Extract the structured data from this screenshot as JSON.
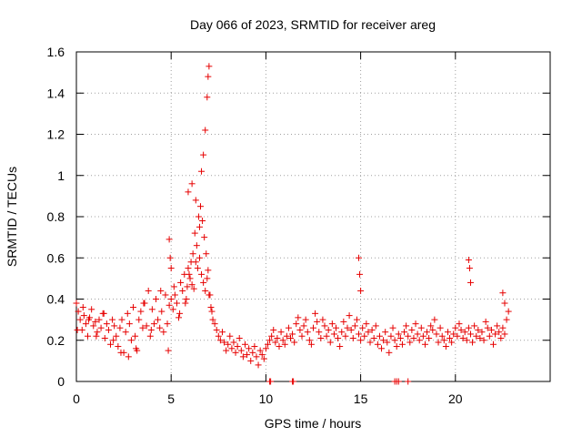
{
  "chart_data": {
    "type": "scatter",
    "title": "Day 066 of 2023, SRMTID for receiver areg",
    "xlabel": "GPS time / hours",
    "ylabel": "SRMTID / TECUs",
    "xlim": [
      0,
      25
    ],
    "ylim": [
      0,
      1.6
    ],
    "xticks": [
      0,
      5,
      10,
      15,
      20
    ],
    "yticks": [
      0,
      0.2,
      0.4,
      0.6,
      0.8,
      1,
      1.2,
      1.4,
      1.6
    ],
    "xtick_labels": [
      "0",
      "5",
      "10",
      "15",
      "20"
    ],
    "ytick_labels": [
      "0",
      "0.2",
      "0.4",
      "0.6",
      "0.8",
      "1",
      "1.2",
      "1.4",
      "1.6"
    ],
    "grid": true,
    "marker": "+",
    "color": "#e60000",
    "series": [
      {
        "name": "SRMTID",
        "x": [
          0.0,
          0.1,
          0.2,
          0.3,
          0.4,
          0.5,
          0.6,
          0.7,
          0.8,
          0.9,
          1.0,
          1.1,
          1.2,
          1.3,
          1.4,
          1.5,
          1.6,
          1.7,
          1.8,
          1.9,
          2.0,
          2.1,
          2.2,
          2.3,
          2.4,
          2.5,
          2.6,
          2.7,
          2.8,
          2.9,
          3.0,
          3.1,
          3.2,
          3.3,
          3.4,
          3.5,
          3.6,
          3.7,
          3.8,
          3.9,
          4.0,
          4.1,
          4.2,
          4.3,
          4.4,
          4.5,
          4.6,
          4.7,
          4.8,
          4.9,
          5.0,
          5.1,
          5.2,
          5.3,
          5.4,
          5.5,
          5.6,
          5.7,
          5.8,
          5.9,
          6.0,
          6.1,
          6.2,
          6.3,
          6.4,
          6.5,
          6.6,
          6.7,
          6.8,
          6.9,
          7.0,
          7.1,
          7.2,
          7.3,
          7.4,
          7.5,
          7.6,
          7.7,
          7.8,
          7.9,
          8.0,
          8.1,
          8.2,
          8.3,
          8.4,
          8.5,
          8.6,
          8.7,
          8.8,
          8.9,
          9.0,
          9.1,
          9.2,
          9.3,
          9.4,
          9.5,
          9.6,
          9.7,
          9.8,
          9.9,
          10.0,
          10.1,
          10.2,
          10.3,
          10.4,
          10.5,
          10.6,
          10.7,
          10.8,
          10.9,
          11.0,
          11.1,
          11.2,
          11.3,
          11.4,
          11.5,
          11.6,
          11.7,
          11.8,
          11.9,
          12.0,
          12.1,
          12.2,
          12.3,
          12.4,
          12.5,
          12.6,
          12.7,
          12.8,
          12.9,
          13.0,
          13.1,
          13.2,
          13.3,
          13.4,
          13.5,
          13.6,
          13.7,
          13.8,
          13.9,
          14.0,
          14.1,
          14.2,
          14.3,
          14.4,
          14.5,
          14.6,
          14.7,
          14.8,
          14.9,
          15.0,
          15.1,
          15.2,
          15.3,
          15.4,
          15.5,
          15.6,
          15.7,
          15.8,
          15.9,
          16.0,
          16.1,
          16.2,
          16.3,
          16.4,
          16.5,
          16.6,
          16.7,
          16.8,
          16.9,
          17.0,
          17.1,
          17.2,
          17.3,
          17.4,
          17.5,
          17.6,
          17.7,
          17.8,
          17.9,
          18.0,
          18.1,
          18.2,
          18.3,
          18.4,
          18.5,
          18.6,
          18.7,
          18.8,
          18.9,
          19.0,
          19.1,
          19.2,
          19.3,
          19.4,
          19.5,
          19.6,
          19.7,
          19.8,
          19.9,
          20.0,
          20.1,
          20.2,
          20.3,
          20.4,
          20.5,
          20.6,
          20.7,
          20.8,
          20.9,
          21.0,
          21.1,
          21.2,
          21.3,
          21.4,
          21.5,
          21.6,
          21.7,
          21.8,
          21.9,
          22.0,
          22.1,
          22.2,
          22.3,
          22.4,
          22.5,
          22.6,
          22.7,
          22.8,
          0.05,
          0.35,
          0.65,
          1.05,
          1.45,
          1.95,
          2.35,
          2.75,
          3.15,
          3.55,
          3.95,
          4.45,
          4.85,
          5.15,
          5.45,
          5.75,
          5.85,
          5.95,
          6.05,
          6.15,
          6.25,
          6.35,
          6.45,
          6.55,
          6.65,
          6.75,
          6.85,
          6.95,
          7.05,
          7.15,
          5.9,
          6.1,
          6.3,
          6.5,
          6.6,
          6.7,
          6.8,
          6.9,
          6.95,
          7.0,
          4.9,
          4.95,
          5.0,
          14.9,
          14.95,
          15.0,
          20.7,
          20.75,
          20.8,
          22.5,
          22.6,
          10.2,
          10.25,
          11.4,
          11.45,
          16.8,
          16.9,
          17.0,
          17.5
        ],
        "y": [
          0.38,
          0.34,
          0.3,
          0.25,
          0.32,
          0.28,
          0.22,
          0.31,
          0.35,
          0.27,
          0.29,
          0.24,
          0.3,
          0.26,
          0.33,
          0.21,
          0.28,
          0.25,
          0.18,
          0.3,
          0.27,
          0.22,
          0.17,
          0.26,
          0.3,
          0.14,
          0.24,
          0.33,
          0.28,
          0.2,
          0.36,
          0.22,
          0.15,
          0.3,
          0.34,
          0.26,
          0.38,
          0.27,
          0.44,
          0.22,
          0.35,
          0.28,
          0.4,
          0.3,
          0.26,
          0.34,
          0.24,
          0.42,
          0.28,
          0.37,
          0.4,
          0.35,
          0.42,
          0.38,
          0.31,
          0.48,
          0.44,
          0.52,
          0.4,
          0.55,
          0.5,
          0.47,
          0.45,
          0.58,
          0.55,
          0.6,
          0.52,
          0.48,
          0.44,
          0.5,
          0.42,
          0.36,
          0.3,
          0.28,
          0.25,
          0.22,
          0.2,
          0.24,
          0.19,
          0.15,
          0.18,
          0.22,
          0.16,
          0.19,
          0.14,
          0.17,
          0.21,
          0.15,
          0.12,
          0.18,
          0.13,
          0.16,
          0.1,
          0.14,
          0.17,
          0.12,
          0.08,
          0.15,
          0.13,
          0.11,
          0.16,
          0.18,
          0.2,
          0.22,
          0.25,
          0.19,
          0.21,
          0.17,
          0.24,
          0.2,
          0.18,
          0.22,
          0.26,
          0.21,
          0.23,
          0.19,
          0.28,
          0.31,
          0.25,
          0.22,
          0.27,
          0.3,
          0.24,
          0.2,
          0.18,
          0.26,
          0.33,
          0.29,
          0.24,
          0.21,
          0.3,
          0.27,
          0.22,
          0.25,
          0.19,
          0.28,
          0.23,
          0.26,
          0.21,
          0.17,
          0.24,
          0.29,
          0.22,
          0.26,
          0.32,
          0.25,
          0.21,
          0.27,
          0.3,
          0.23,
          0.2,
          0.26,
          0.22,
          0.28,
          0.24,
          0.19,
          0.25,
          0.21,
          0.27,
          0.18,
          0.22,
          0.16,
          0.2,
          0.24,
          0.19,
          0.14,
          0.22,
          0.26,
          0.2,
          0.17,
          0.23,
          0.21,
          0.18,
          0.24,
          0.27,
          0.22,
          0.19,
          0.25,
          0.21,
          0.28,
          0.23,
          0.2,
          0.26,
          0.22,
          0.18,
          0.24,
          0.21,
          0.27,
          0.25,
          0.3,
          0.23,
          0.19,
          0.26,
          0.22,
          0.2,
          0.17,
          0.24,
          0.21,
          0.19,
          0.23,
          0.26,
          0.22,
          0.28,
          0.25,
          0.21,
          0.24,
          0.2,
          0.26,
          0.23,
          0.19,
          0.27,
          0.22,
          0.25,
          0.21,
          0.24,
          0.2,
          0.29,
          0.26,
          0.22,
          0.25,
          0.18,
          0.23,
          0.27,
          0.24,
          0.21,
          0.26,
          0.23,
          0.3,
          0.34,
          0.25,
          0.36,
          0.3,
          0.22,
          0.33,
          0.2,
          0.14,
          0.12,
          0.16,
          0.38,
          0.25,
          0.44,
          0.15,
          0.46,
          0.33,
          0.38,
          0.46,
          0.52,
          0.58,
          0.62,
          0.72,
          0.66,
          0.8,
          0.85,
          0.78,
          0.7,
          0.62,
          0.54,
          0.42,
          0.34,
          0.92,
          0.96,
          0.88,
          0.75,
          1.02,
          1.1,
          1.22,
          1.38,
          1.48,
          1.53,
          0.69,
          0.6,
          0.55,
          0.6,
          0.52,
          0.44,
          0.59,
          0.55,
          0.48,
          0.43,
          0.38,
          0.0,
          0.0,
          0.0,
          0.0,
          0.0,
          0.0,
          0.0,
          0.0
        ]
      }
    ]
  }
}
